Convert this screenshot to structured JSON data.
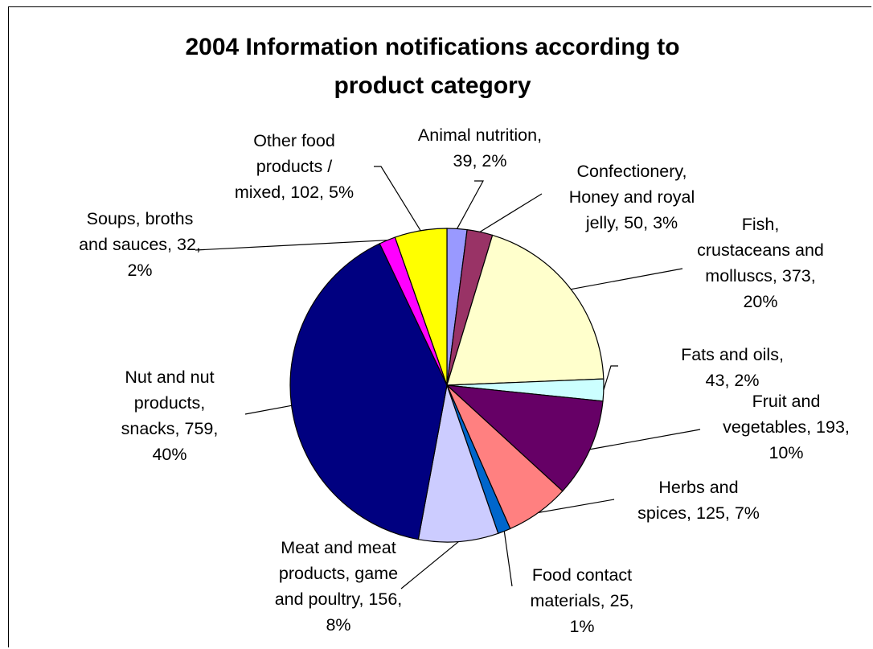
{
  "chart_data": {
    "type": "pie",
    "title_lines": [
      "2004 Information notifications according to",
      "product category"
    ],
    "slices": [
      {
        "name": "Animal nutrition",
        "value": 39,
        "percent": "2%",
        "color": "#9999FF",
        "label_lines": [
          "Animal nutrition,",
          "39, 2%"
        ]
      },
      {
        "name": "Confectionery, Honey and royal jelly",
        "value": 50,
        "percent": "3%",
        "color": "#993366",
        "label_lines": [
          "Confectionery,",
          "Honey and royal",
          "jelly, 50, 3%"
        ]
      },
      {
        "name": "Fish, crustaceans and molluscs",
        "value": 373,
        "percent": "20%",
        "color": "#FFFFCC",
        "label_lines": [
          "Fish,",
          "crustaceans and",
          "molluscs, 373,",
          "20%"
        ]
      },
      {
        "name": "Fats and oils",
        "value": 43,
        "percent": "2%",
        "color": "#CCFFFF",
        "label_lines": [
          "Fats and oils,",
          "43, 2%"
        ]
      },
      {
        "name": "Fruit and vegetables",
        "value": 193,
        "percent": "10%",
        "color": "#660066",
        "label_lines": [
          "Fruit and",
          "vegetables, 193,",
          "10%"
        ]
      },
      {
        "name": "Herbs and spices",
        "value": 125,
        "percent": "7%",
        "color": "#FF8080",
        "label_lines": [
          "Herbs and",
          "spices, 125, 7%"
        ]
      },
      {
        "name": "Food contact materials",
        "value": 25,
        "percent": "1%",
        "color": "#0066CC",
        "label_lines": [
          "Food contact",
          "materials, 25,",
          "1%"
        ]
      },
      {
        "name": "Meat and meat products, game and poultry",
        "value": 156,
        "percent": "8%",
        "color": "#CCCCFF",
        "label_lines": [
          "Meat and meat",
          "products, game",
          "and poultry, 156,",
          "8%"
        ]
      },
      {
        "name": "Nut and nut products, snacks",
        "value": 759,
        "percent": "40%",
        "color": "#000080",
        "label_lines": [
          "Nut and nut",
          "products,",
          "snacks, 759,",
          "40%"
        ]
      },
      {
        "name": "Soups, broths and sauces",
        "value": 32,
        "percent": "2%",
        "color": "#FF00FF",
        "label_lines": [
          "Soups, broths",
          "and sauces, 32,",
          "2%"
        ]
      },
      {
        "name": "Other food products / mixed",
        "value": 102,
        "percent": "5%",
        "color": "#FFFF00",
        "label_lines": [
          "Other food",
          "products /",
          "mixed, 102, 5%"
        ]
      }
    ]
  }
}
